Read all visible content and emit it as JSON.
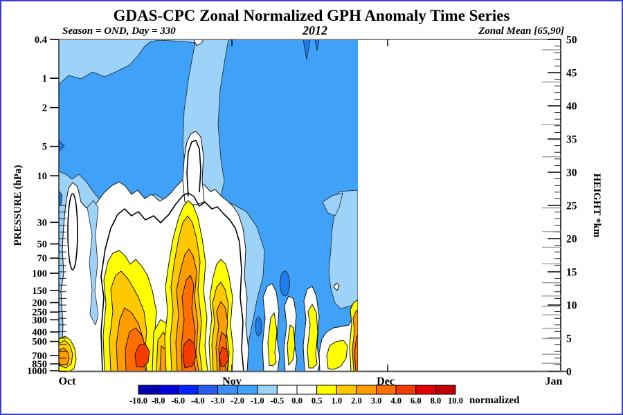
{
  "frame": {
    "border_color": "#3b3bd0"
  },
  "header": {
    "title": "GDAS-CPC Zonal Normalized GPH Anomaly Time Series",
    "season_label": "Season = OND, Day = 330",
    "year": "2012",
    "zonal_mean_label": "Zonal Mean [65,90]"
  },
  "axes": {
    "pressure": {
      "title": "PRESSURE (hPa)",
      "scale": "log",
      "range": [
        0.4,
        1000
      ],
      "ticks": [
        0.4,
        1,
        2,
        5,
        10,
        30,
        50,
        70,
        100,
        150,
        200,
        250,
        300,
        400,
        500,
        700,
        850,
        1000
      ]
    },
    "height": {
      "title": "HEIGHT *km",
      "range": [
        0,
        50
      ],
      "minor_step_km": 1,
      "labels": [
        0,
        5,
        10,
        15,
        20,
        25,
        30,
        35,
        40,
        45,
        50
      ]
    },
    "time": {
      "months": [
        "Oct",
        "Nov",
        "Dec",
        "Jan"
      ],
      "data_end_note": "data plotted through day 330 (late Nov)"
    }
  },
  "colorbar": {
    "label": "normalized",
    "tick_labels": [
      "-10.0",
      "-8.0",
      "-6.0",
      "-4.0",
      "-3.0",
      "-2.0",
      "-1.0",
      "-0.5",
      "0.0",
      "0.5",
      "1.0",
      "2.0",
      "3.0",
      "4.0",
      "6.0",
      "8.0",
      "10.0"
    ],
    "colors": [
      "#0000b0",
      "#0000dd",
      "#0022ff",
      "#2a5cf0",
      "#3c90f3",
      "#3fa1f7",
      "#9dd3f8",
      "#ffffff",
      "#ffffff",
      "#ffff00",
      "#ffc800",
      "#ff9c00",
      "#ff6e00",
      "#f43b00",
      "#e30000",
      "#c00000"
    ]
  },
  "palette": {
    "base": "#3fa1f7",
    "light": "#9dd3f8",
    "deep": "#1e7ceb",
    "white": "#ffffff",
    "yellow": "#ffff00",
    "gold": "#ffc800",
    "orange": "#ff9c00",
    "deep_orange": "#ff6e00",
    "orange_red": "#f43b00",
    "red": "#e30000"
  },
  "chart_data": {
    "type": "filled_contour",
    "title": "GDAS-CPC Zonal Normalized GPH Anomaly Time Series",
    "subtitle": {
      "left": "Season = OND, Day = 330",
      "center": "2012",
      "right": "Zonal Mean [65,90]"
    },
    "x_axis": {
      "months": [
        "Oct",
        "Nov",
        "Dec",
        "Jan"
      ],
      "year": 2012,
      "last_day_plotted": 330
    },
    "y_axis": {
      "label": "PRESSURE (hPa)",
      "scale": "log",
      "range": [
        0.4,
        1000
      ]
    },
    "y2_axis": {
      "label": "HEIGHT *km",
      "range": [
        0,
        50
      ]
    },
    "contour_levels": [
      -10,
      -8,
      -6,
      -4,
      -3,
      -2,
      -1,
      -0.5,
      0,
      0.5,
      1,
      2,
      3,
      4,
      6,
      8,
      10
    ],
    "units": "normalized",
    "legend_position": "bottom",
    "features": [
      {
        "region": "stratosphere 0.4-20 hPa, Oct through day 330",
        "value_range": [
          -2,
          -1
        ],
        "description": "broad negative normalized GPH anomaly (medium blue) over most of the upper layer"
      },
      {
        "region": "upper-left early-to-mid Oct above ~2 hPa",
        "value_range": [
          -1,
          -0.5
        ],
        "description": "weaker negative anomaly band (light blue)"
      },
      {
        "region": "vertical channel around early Nov, 0.4-100 hPa",
        "value_range": [
          -1,
          0.5
        ],
        "description": "light-blue channel with near-zero white core around 2-30 hPa"
      },
      {
        "region": "near 0.4 hPa around Nov 18-20",
        "value_range": [
          -3,
          -2
        ],
        "description": "two short dark-blue downward spikes from the top boundary"
      },
      {
        "region": "troposphere/lower stratosphere 30-1000 hPa, Oct to ~Nov 10",
        "value_range": [
          0.5,
          8
        ],
        "description": "three warm towers of positive anomaly; yellow-orange columns with red cores of +6 to +8 near 700-1000 hPa in mid-Oct, late Oct and early Nov"
      },
      {
        "region": "150-1000 hPa, Nov 12-24",
        "value_range": [
          -0.5,
          1
        ],
        "description": "alternating narrow white/yellow positive pockets embedded in negative field; small -3 to -2 blue pockets near 300-500 hPa"
      },
      {
        "region": "right edge of data (day 330) below 200 hPa",
        "value_range": [
          2,
          6
        ],
        "description": "warm column at final plotted day"
      },
      {
        "region": "after day 330 (Dec-Jan)",
        "value_range": null,
        "description": "no data, blank area"
      }
    ]
  }
}
